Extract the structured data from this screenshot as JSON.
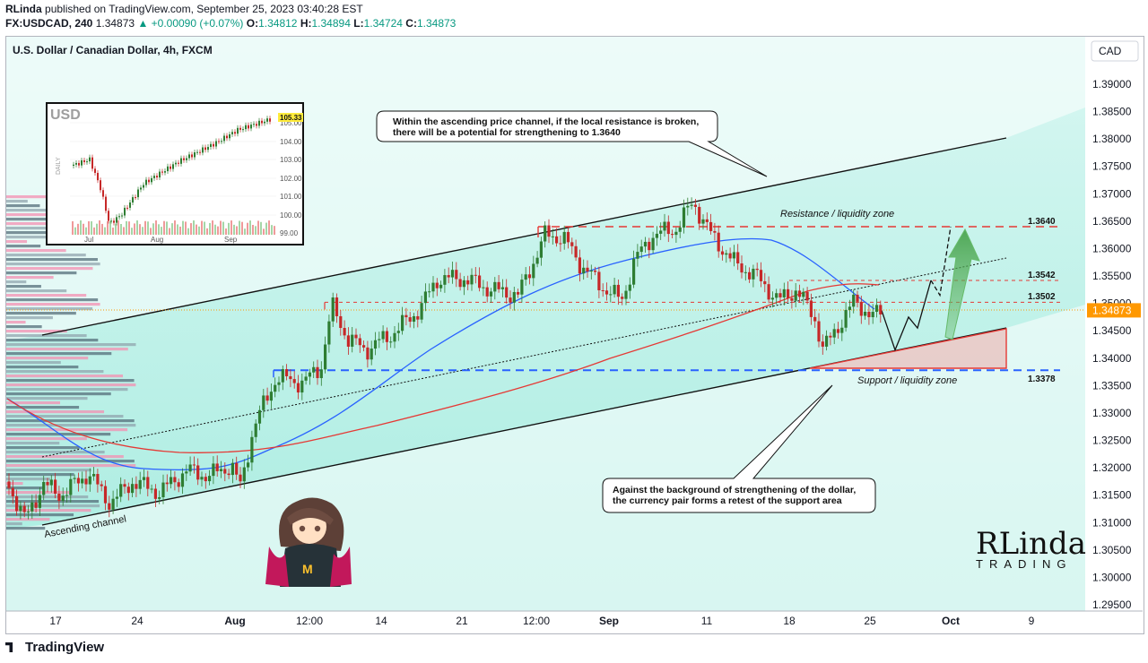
{
  "header": {
    "publisher": "RLinda",
    "published_text": "published on TradingView.com, September 25, 2023 03:40:28 EST",
    "symbol": "FX:USDCAD, 240",
    "last": "1.34873",
    "change": "▲ +0.00090 (+0.07%)",
    "o_label": "O:",
    "o": "1.34812",
    "h_label": "H:",
    "h": "1.34894",
    "l_label": "L:",
    "l": "1.34724",
    "c_label": "C:",
    "c": "1.34873"
  },
  "chart_title": "U.S. Dollar / Canadian Dollar, 4h, FXCM",
  "currency_button": "CAD",
  "price_badge": "1.34873",
  "annotations": {
    "top_callout_line1": "Within the ascending price channel, if the local resistance is broken,",
    "top_callout_line2": "there will be a potential for strengthening to 1.3640",
    "bottom_callout_line1": "Against the background of strengthening of the dollar,",
    "bottom_callout_line2": "the currency pair forms a retest of the support area",
    "resistance_zone": "Resistance / liquidity zone",
    "support_zone": "Support / liquidity zone",
    "channel_label": "Ascending channel",
    "level_1": "1.3640",
    "level_2": "1.3542",
    "level_3": "1.3502",
    "level_4": "1.3378"
  },
  "inset": {
    "title": "USD",
    "side_label": "DAILY",
    "value_badge": "105.33",
    "y_ticks": [
      "105.00",
      "104.00",
      "103.00",
      "102.00",
      "101.00",
      "100.00",
      "99.00"
    ],
    "x_ticks": [
      "Jul",
      "Aug",
      "Sep"
    ]
  },
  "branding": {
    "logo_line1": "RLinda",
    "logo_line2": "TRADING"
  },
  "footer": "TradingView",
  "colors": {
    "bg_band": "#b2f0e6",
    "up_candle": "#2e7d32",
    "down_candle": "#c62828",
    "ma_blue": "#2962ff",
    "ma_red": "#e53935",
    "price_badge": "#ff9800",
    "resistance_dash": "#e53935",
    "support_dash": "#2962ff"
  },
  "chart_data": {
    "type": "candlestick",
    "title": "U.S. Dollar / Canadian Dollar, 4h, FXCM",
    "y_axis_ticks": [
      1.39,
      1.385,
      1.38,
      1.375,
      1.37,
      1.365,
      1.36,
      1.355,
      1.35,
      1.345,
      1.34,
      1.335,
      1.33,
      1.325,
      1.32,
      1.315,
      1.31,
      1.305,
      1.3,
      1.295
    ],
    "ylim": [
      1.294,
      1.3945
    ],
    "x_axis_ticks": [
      "17",
      "24",
      "Aug",
      "12:00",
      "14",
      "21",
      "12:00",
      "Sep",
      "11",
      "18",
      "25",
      "Oct",
      "9"
    ],
    "last_price": 1.34873,
    "price_path": [
      [
        0,
        1.3175
      ],
      [
        20,
        1.3105
      ],
      [
        40,
        1.317
      ],
      [
        60,
        1.315
      ],
      [
        90,
        1.319
      ],
      [
        115,
        1.3135
      ],
      [
        140,
        1.3175
      ],
      [
        170,
        1.3155
      ],
      [
        200,
        1.3195
      ],
      [
        225,
        1.3185
      ],
      [
        250,
        1.3205
      ],
      [
        260,
        1.3165
      ],
      [
        275,
        1.3275
      ],
      [
        300,
        1.3365
      ],
      [
        330,
        1.3355
      ],
      [
        350,
        1.3385
      ],
      [
        362,
        1.3495
      ],
      [
        380,
        1.3435
      ],
      [
        400,
        1.3415
      ],
      [
        430,
        1.3445
      ],
      [
        460,
        1.349
      ],
      [
        480,
        1.3545
      ],
      [
        510,
        1.3545
      ],
      [
        540,
        1.3525
      ],
      [
        570,
        1.3515
      ],
      [
        600,
        1.3625
      ],
      [
        620,
        1.362
      ],
      [
        640,
        1.357
      ],
      [
        660,
        1.3535
      ],
      [
        685,
        1.3505
      ],
      [
        700,
        1.358
      ],
      [
        720,
        1.3625
      ],
      [
        745,
        1.3635
      ],
      [
        765,
        1.3685
      ],
      [
        785,
        1.3625
      ],
      [
        810,
        1.3575
      ],
      [
        835,
        1.355
      ],
      [
        860,
        1.3505
      ],
      [
        880,
        1.3525
      ],
      [
        900,
        1.3475
      ],
      [
        910,
        1.3415
      ],
      [
        925,
        1.3455
      ],
      [
        945,
        1.3505
      ],
      [
        965,
        1.3475
      ],
      [
        975,
        1.34873
      ]
    ],
    "projection_path": [
      [
        975,
        1.34873
      ],
      [
        990,
        1.3415
      ],
      [
        1005,
        1.3475
      ],
      [
        1015,
        1.3455
      ],
      [
        1030,
        1.3542
      ],
      [
        1040,
        1.3515
      ],
      [
        1052,
        1.364
      ]
    ],
    "levels": {
      "resistance": 1.364,
      "level_1": 1.3542,
      "level_2": 1.3502,
      "support": 1.3378
    },
    "moving_averages": [
      "blue",
      "red"
    ]
  }
}
